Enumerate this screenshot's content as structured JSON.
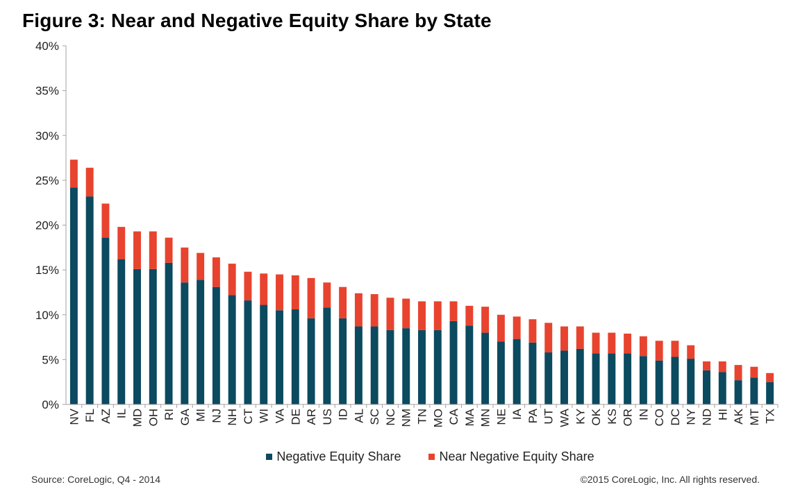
{
  "title": "Figure 3: Near and Negative Equity Share by State",
  "source": "Source: CoreLogic, Q4 - 2014",
  "copyright": "©2015 CoreLogic, Inc. All rights reserved.",
  "colors": {
    "negative": "#0b4a5f",
    "near_negative": "#e8432f",
    "axis": "#a0a0a0"
  },
  "chart_data": {
    "type": "bar",
    "stacked": true,
    "title": "Figure 3: Near and Negative Equity Share by State",
    "xlabel": "",
    "ylabel": "",
    "ylim": [
      0,
      40
    ],
    "yticks": [
      "0%",
      "5%",
      "10%",
      "15%",
      "20%",
      "25%",
      "30%",
      "35%",
      "40%"
    ],
    "grid": false,
    "legend_position": "bottom",
    "categories": [
      "NV",
      "FL",
      "AZ",
      "IL",
      "MD",
      "OH",
      "RI",
      "GA",
      "MI",
      "NJ",
      "NH",
      "CT",
      "WI",
      "VA",
      "DE",
      "AR",
      "US",
      "ID",
      "AL",
      "SC",
      "NC",
      "NM",
      "TN",
      "MO",
      "CA",
      "MA",
      "MN",
      "NE",
      "IA",
      "PA",
      "UT",
      "WA",
      "KY",
      "OK",
      "KS",
      "OR",
      "IN",
      "CO",
      "DC",
      "NY",
      "ND",
      "HI",
      "AK",
      "MT",
      "TX"
    ],
    "series": [
      {
        "name": "Negative Equity Share",
        "values": [
          24.2,
          23.2,
          18.6,
          16.2,
          15.1,
          15.1,
          15.8,
          13.6,
          13.9,
          13.1,
          12.2,
          11.6,
          11.1,
          10.5,
          10.6,
          9.6,
          10.8,
          9.6,
          8.7,
          8.7,
          8.3,
          8.5,
          8.3,
          8.3,
          9.3,
          8.8,
          8.0,
          7.0,
          7.3,
          6.9,
          5.8,
          6.0,
          6.2,
          5.7,
          5.7,
          5.7,
          5.4,
          4.9,
          5.3,
          5.1,
          3.8,
          3.6,
          2.7,
          3.0,
          2.5
        ]
      },
      {
        "name": "Near Negative Equity Share",
        "values": [
          3.1,
          3.2,
          3.8,
          3.6,
          4.2,
          4.2,
          2.8,
          3.9,
          3.0,
          3.3,
          3.5,
          3.2,
          3.5,
          4.0,
          3.8,
          4.5,
          2.8,
          3.5,
          3.7,
          3.6,
          3.6,
          3.3,
          3.2,
          3.2,
          2.2,
          2.2,
          2.9,
          3.0,
          2.5,
          2.6,
          3.3,
          2.7,
          2.5,
          2.3,
          2.3,
          2.2,
          2.2,
          2.2,
          1.8,
          1.5,
          1.0,
          1.2,
          1.7,
          1.2,
          1.0
        ]
      }
    ]
  }
}
